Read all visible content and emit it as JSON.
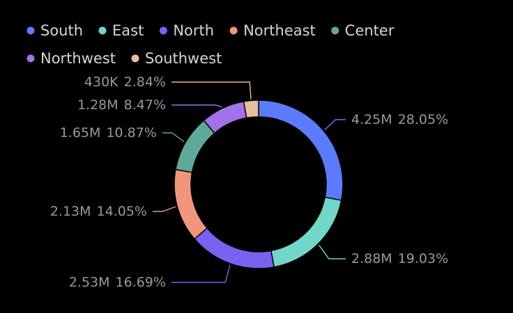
{
  "chart_data": {
    "type": "pie",
    "variant": "donut",
    "title": "",
    "legend_position": "top-left",
    "series": [
      {
        "name": "South",
        "display": "4.25M",
        "percent": "28.05%",
        "value": 4250000,
        "color": "#5b7cfa"
      },
      {
        "name": "East",
        "display": "2.88M",
        "percent": "19.03%",
        "value": 2880000,
        "color": "#72d6c9"
      },
      {
        "name": "North",
        "display": "2.53M",
        "percent": "16.69%",
        "value": 2530000,
        "color": "#7b61f0"
      },
      {
        "name": "Northeast",
        "display": "2.13M",
        "percent": "14.05%",
        "value": 2130000,
        "color": "#f0967c"
      },
      {
        "name": "Center",
        "display": "1.65M",
        "percent": "10.87%",
        "value": 1650000,
        "color": "#5fa99b"
      },
      {
        "name": "Northwest",
        "display": "1.28M",
        "percent": "8.47%",
        "value": 1280000,
        "color": "#a371ea"
      },
      {
        "name": "Southwest",
        "display": "430K",
        "percent": "2.84%",
        "value": 430000,
        "color": "#e7bf9d"
      }
    ]
  }
}
